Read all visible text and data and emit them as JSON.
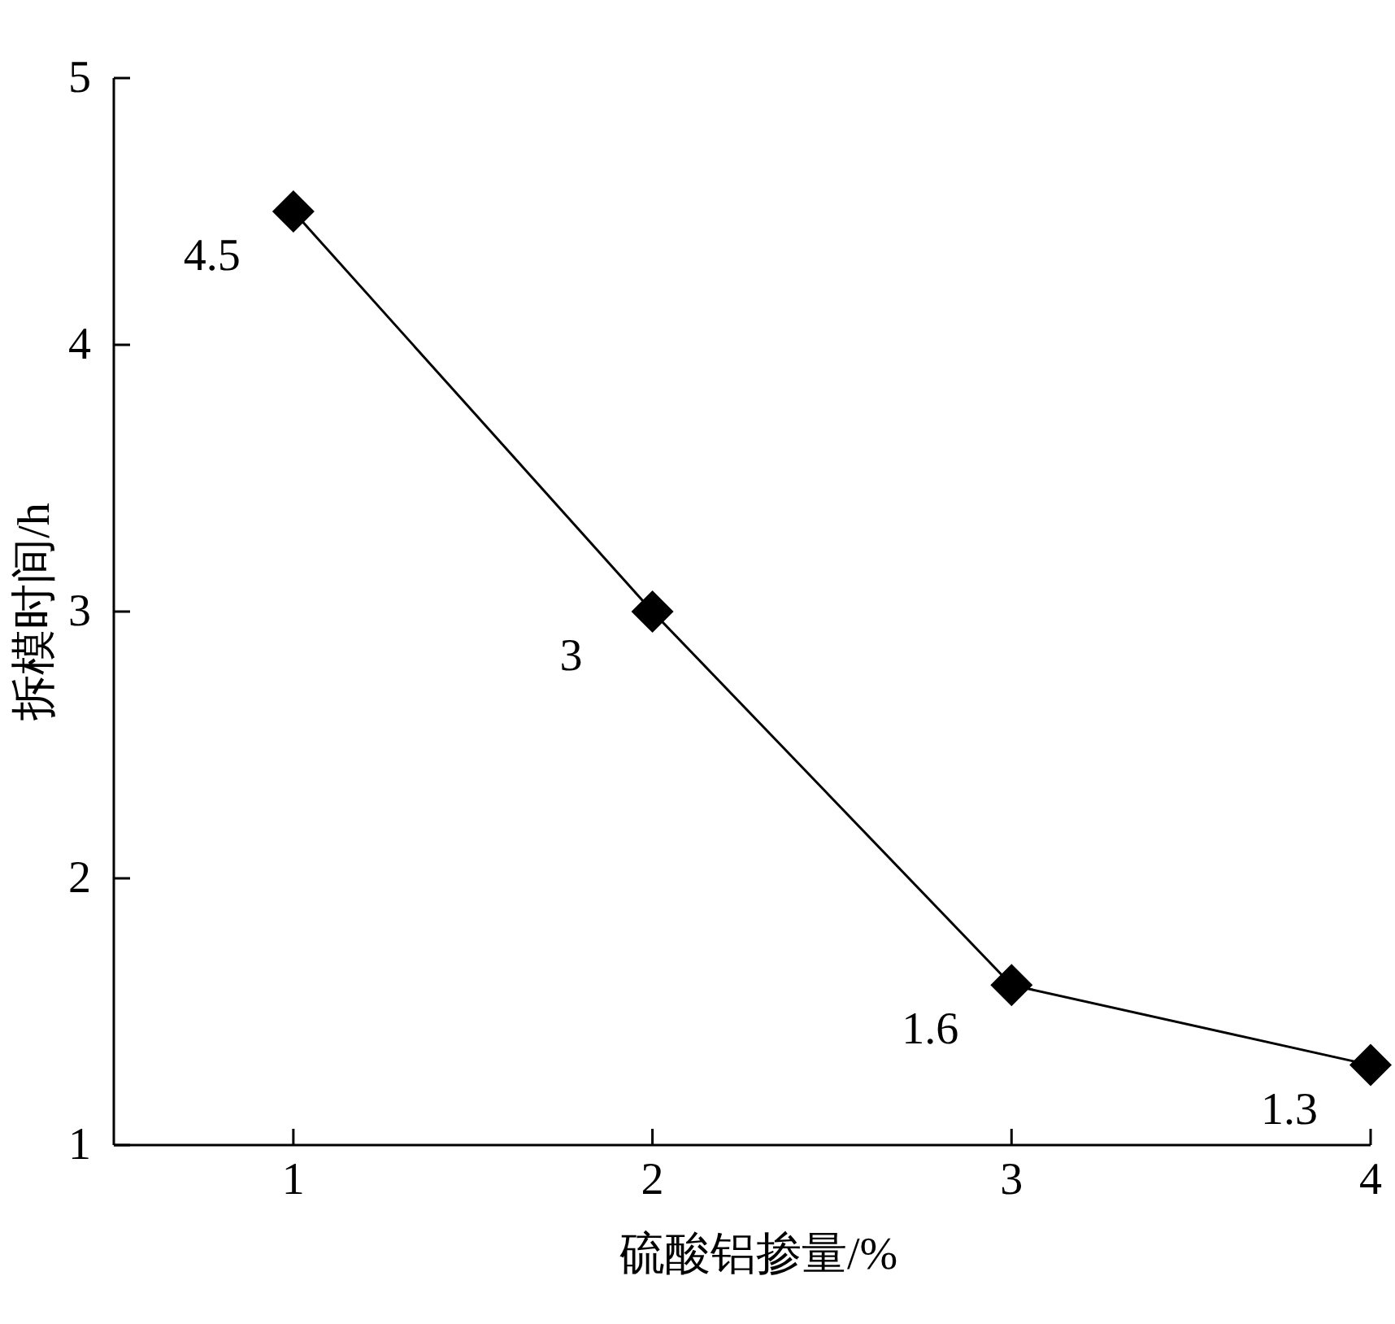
{
  "chart_data": {
    "type": "line",
    "xlabel": "硫酸铝掺量/%",
    "ylabel": "拆模时间/h",
    "x": [
      1,
      2,
      3,
      4
    ],
    "values": [
      4.5,
      3,
      1.6,
      1.3
    ],
    "color": "#000000",
    "marker": "diamond",
    "line_style": "solid",
    "data_labels": true,
    "xlim": [
      0.5,
      4
    ],
    "ylim": [
      1,
      5
    ],
    "xticks": [
      1,
      2,
      3,
      4
    ],
    "yticks": [
      1,
      2,
      3,
      4,
      5
    ]
  }
}
